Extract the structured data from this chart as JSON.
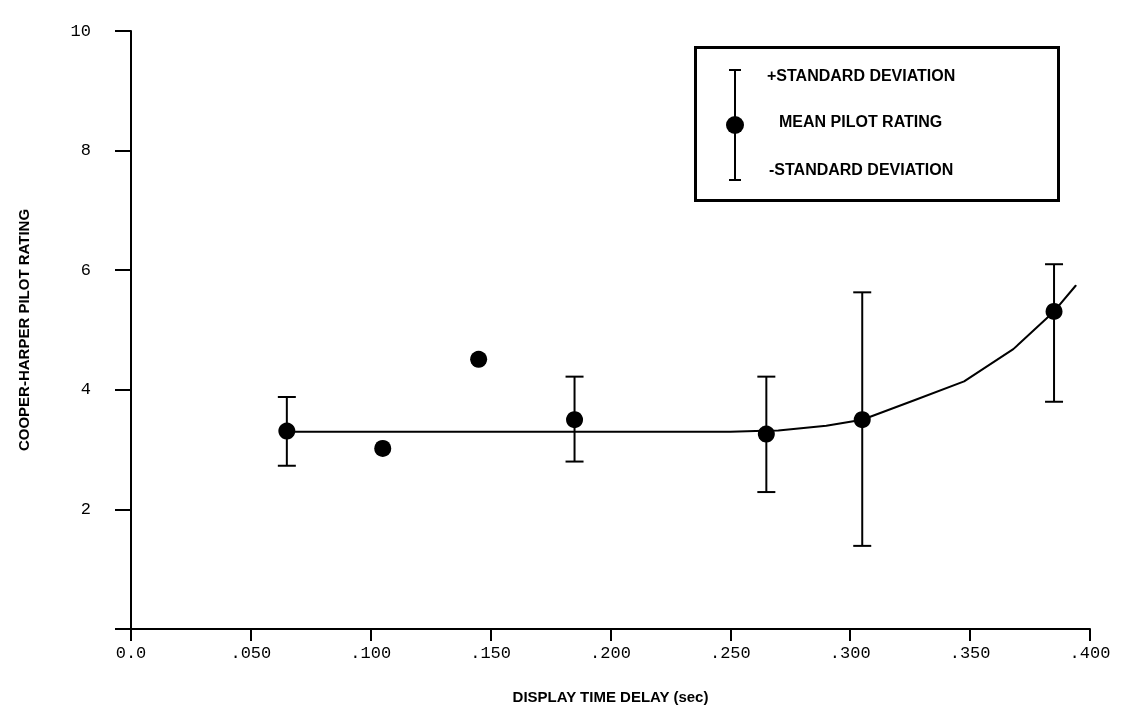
{
  "chart_data": {
    "type": "scatter",
    "xlabel": "DISPLAY TIME DELAY (sec)",
    "ylabel": "COOPER-HARPER PILOT RATING",
    "x": [
      0.065,
      0.105,
      0.145,
      0.185,
      0.265,
      0.305,
      0.385
    ],
    "series": [
      {
        "name": "MEAN PILOT RATING",
        "color": "#000000",
        "values": [
          3.31,
          3.02,
          4.51,
          3.5,
          3.26,
          3.5,
          5.31
        ],
        "errors": [
          [
            2.73,
            3.88
          ],
          null,
          null,
          [
            2.8,
            4.22
          ],
          [
            2.29,
            4.22
          ],
          [
            1.39,
            5.63
          ],
          [
            3.8,
            6.1
          ]
        ]
      },
      {
        "type": "line",
        "color": "#000000",
        "marker": "none",
        "x": [
          0.065,
          0.1,
          0.15,
          0.2,
          0.25,
          0.27,
          0.29,
          0.305,
          0.327,
          0.3475,
          0.368,
          0.385,
          0.394
        ],
        "values": [
          3.3,
          3.3,
          3.3,
          3.3,
          3.3,
          3.32,
          3.4,
          3.5,
          3.83,
          4.14,
          4.68,
          5.31,
          5.74
        ]
      }
    ],
    "annotations": [
      "+STANDARD DEVIATION",
      "-STANDARD DEVIATION"
    ],
    "marker": "circle",
    "line_style": "solid",
    "grid": false,
    "legend": "top right",
    "xlim": [
      0,
      0.4
    ],
    "xticks": [
      {
        "value": 0,
        "label": "0.0"
      },
      {
        "value": 0.05,
        "label": ".050"
      },
      {
        "value": 0.1,
        "label": ".100"
      },
      {
        "value": 0.15,
        "label": ".150"
      },
      {
        "value": 0.2,
        "label": ".200"
      },
      {
        "value": 0.25,
        "label": ".250"
      },
      {
        "value": 0.3,
        "label": ".300"
      },
      {
        "value": 0.35,
        "label": ".350"
      },
      {
        "value": 0.4,
        "label": ".400"
      }
    ],
    "ylim": [
      0,
      10
    ],
    "yticks": [
      {
        "value": 0,
        "label": null
      },
      2,
      4,
      6,
      8,
      10
    ]
  }
}
